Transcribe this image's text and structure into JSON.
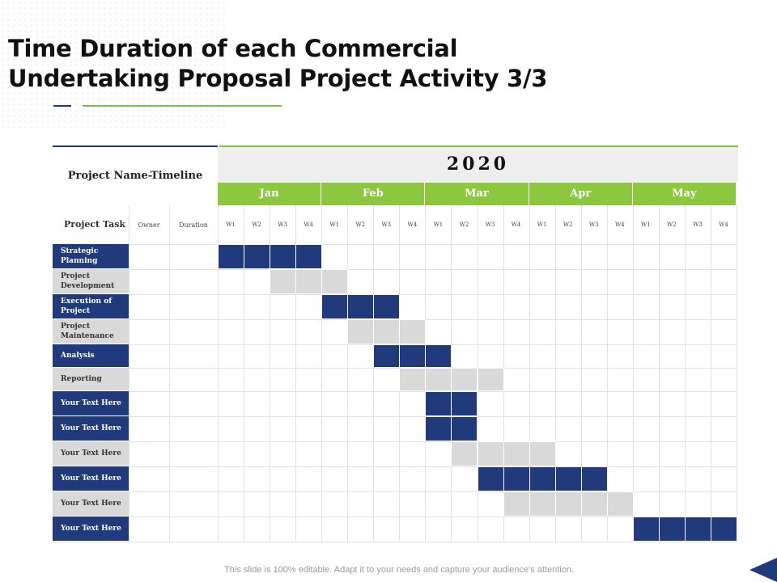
{
  "title_lines": [
    "Time Duration of each Commercial",
    "Undertaking Proposal Project Activity 3/3"
  ],
  "gantt": {
    "year": "2020",
    "header_label": "Project Name-Timeline",
    "col_task": "Project Task",
    "col_owner": "Owner",
    "col_duration": "Duration",
    "months": [
      "Jan",
      "Feb",
      "Mar",
      "Apr",
      "May"
    ],
    "weeks": [
      "W1",
      "W2",
      "W3",
      "W4"
    ],
    "colors": {
      "dark": "#213a7c",
      "light": "#d9d9d9",
      "green": "#8dc63f"
    },
    "tasks": [
      {
        "label": "Strategic Planning",
        "style": "dark",
        "start_week": 1,
        "end_week": 4
      },
      {
        "label": "Project Development",
        "style": "light",
        "start_week": 3,
        "end_week": 5
      },
      {
        "label": "Execution of Project",
        "style": "dark",
        "start_week": 5,
        "end_week": 7
      },
      {
        "label": "Project Maintenance",
        "style": "light",
        "start_week": 6,
        "end_week": 8
      },
      {
        "label": "Analysis",
        "style": "dark",
        "start_week": 7,
        "end_week": 9
      },
      {
        "label": "Reporting",
        "style": "light",
        "start_week": 8,
        "end_week": 11
      },
      {
        "label": "Your Text Here",
        "style": "dark",
        "start_week": 9,
        "end_week": 10
      },
      {
        "label": "Your Text Here",
        "style": "dark",
        "start_week": 9,
        "end_week": 10
      },
      {
        "label": "Your Text Here",
        "style": "light",
        "start_week": 10,
        "end_week": 13
      },
      {
        "label": "Your Text Here",
        "style": "dark",
        "start_week": 11,
        "end_week": 15
      },
      {
        "label": "Your Text Here",
        "style": "light",
        "start_week": 12,
        "end_week": 16
      },
      {
        "label": "Your Text Here",
        "style": "dark",
        "start_week": 17,
        "end_week": 20
      }
    ]
  },
  "footer": "This slide is 100% editable. Adapt it to your needs and capture your audience's attention."
}
